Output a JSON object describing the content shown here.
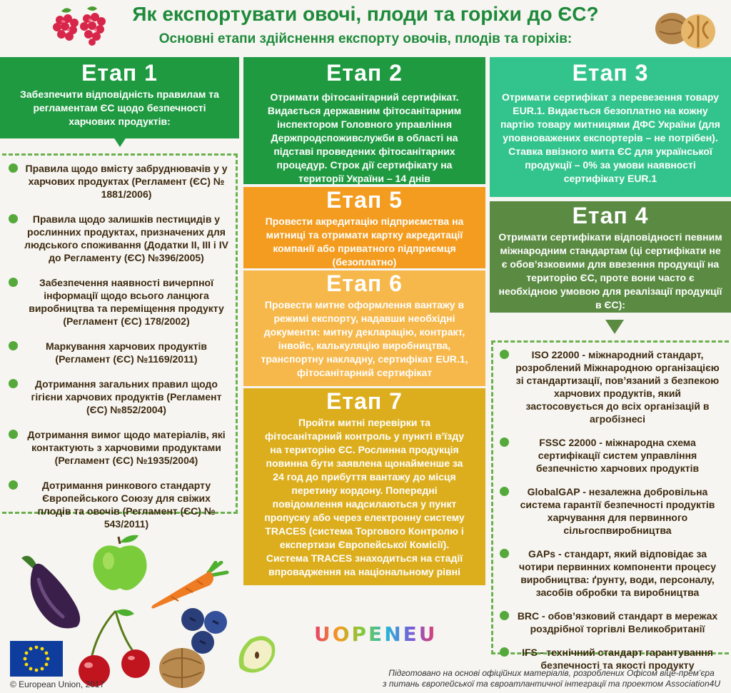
{
  "header": {
    "title": "Як експортувати овочі, плоди та горіхи до ЄС?",
    "subtitle": "Основні етапи здійснення експорту овочів, плодів та горіхів:"
  },
  "stages": {
    "s1": {
      "head": "Етап 1",
      "body": "Забезпечити відповідність правилам та регламентам ЄС щодо безпечності харчових продуктів:"
    },
    "s2": {
      "head": "Етап 2",
      "body": "Отримати фітосанітарний сертифікат. Видається державним фітосанітарним інспектором Головного управління Держпродспоживслужби в області на підставі проведених фітосанітарних процедур. Строк дії сертифікату на території України – 14 днів"
    },
    "s3": {
      "head": "Етап 3",
      "body": "Отримати сертифікат з перевезення товару EUR.1. Видається безоплатно на кожну партію товару митницями ДФС України (для уповноважених експортерів – не потрібен). Ставка ввізного мита ЄС для української продукції – 0% за умови наявності сертифікату EUR.1"
    },
    "s4": {
      "head": "Етап 4",
      "body": "Отримати сертифікати відповідності певним міжнародним стандартам (ці сертифікати не є обов’язковими для ввезення продукції на територію ЄС, проте вони часто є необхідною умовою для реалізації продукції в ЄС):"
    },
    "s5": {
      "head": "Етап 5",
      "body": "Провести акредитацію підприємства на митниці та отримати картку акредитації компанії або приватного підприємця (безоплатно)"
    },
    "s6": {
      "head": "Етап 6",
      "body": "Провести митне оформлення вантажу в режимі експорту, надавши необхідні документи: митну декларацію, контракт, інвойс, калькуляцію виробництва, транспортну накладну, сертифікат EUR.1, фітосанітарний сертифікат"
    },
    "s7": {
      "head": "Етап 7",
      "body": "Пройти митні перевірки та фітосанітарний контроль у пункті в’їзду на територію ЄС. Рослинна продукція повинна бути заявлена щонайменше за 24 год до прибуття вантажу до місця перетину кордону. Попередні повідомлення надсилаються у пункт пропуску або через електронну систему TRACES (система Торгового Контролю і експертизи Європейської Комісії). Система TRACES знаходиться на стадії впровадження на національному рівні"
    }
  },
  "left_list": [
    "Правила щодо вмісту забруднювачів у у харчових продуктах (Регламент (ЄС) № 1881/2006)",
    "Правила щодо залишків пестицидів у рослинних продуктах, призначених для людського споживання (Додатки ІІ, ІІІ і IV до Регламенту (ЄС) №396/2005)",
    "Забезпечення наявності вичерпної інформації щодо всього ланцюга виробництва та переміщення продукту (Регламент (ЄС) 178/2002)",
    "Маркування харчових продуктів (Регламент (ЄС) №1169/2011)",
    "Дотримання загальних правил щодо гігієни харчових продуктів (Регламент (ЄС) №852/2004)",
    "Дотримання вимог щодо матеріалів, які контактують з харчовими продуктами (Регламент (ЄС) №1935/2004)",
    "Дотримання ринкового стандарту Європейського Союзу для свіжих плодів та овочів (Регламент (ЄС) № 543/2011)"
  ],
  "right_list": [
    "ISO 22000 - міжнародний стандарт, розроблений Міжнародною організацією зі стандартизації, пов’язаний з безпекою харчових продуктів, який застосовується до всіх організацій в агробізнесі",
    "FSSC 22000 - міжнародна схема сертифікації систем управління безпечністю харчових продуктів",
    "GlobalGAP - незалежна добровільна система гарантії безпечності продуктів харчування для первинного сільгоспвиробництва",
    "GAPs - стандарт, який відповідає за чотири первинних компоненти процесу виробництва: ґрунту, води, персоналу, засобів обробки та виробництва",
    "BRC - обов’язковий стандарт в мережах роздрібної торгівлі Великобританії",
    "IFS - технічний стандарт гарантування безпечності та якості продукту"
  ],
  "footer": {
    "logo": "UOPENEU",
    "copyright": "© European Union, 2017",
    "credits_line1": "Підготовано на основі офіційних матеріалів, розроблених Офісом віце-прем’єра",
    "credits_line2": "з питань європейської та євроатлантичної інтеграції та проектом Association4U"
  },
  "colors": {
    "green": "#1f9a41",
    "mint": "#33c48d",
    "olive": "#5b8b43",
    "orange": "#f39c1f",
    "light_orange": "#f6b84b",
    "mustard": "#dcae1e"
  },
  "icons": [
    "raspberry-icon",
    "walnut-icon",
    "eggplant-icon",
    "apple-icon",
    "carrot-icon",
    "cherry-icon",
    "blueberry-icon",
    "apple-slice-icon",
    "eu-flag-icon"
  ]
}
